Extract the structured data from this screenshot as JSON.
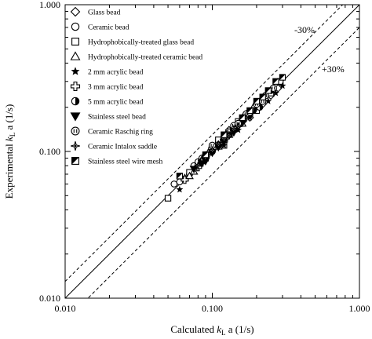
{
  "chart_data": {
    "type": "scatter",
    "xlabel": "Calculated k_L a (1/s)",
    "xlabel_parts": {
      "prefix": "Calculated ",
      "var": "k",
      "sub": "L",
      "suffix": " a (1/s)"
    },
    "ylabel": "Experimental k_L a (1/s)",
    "ylabel_parts": {
      "prefix": "Experimental ",
      "var": "k",
      "sub": "L",
      "suffix": " a (1/s)"
    },
    "xscale": "log",
    "yscale": "log",
    "xlim": [
      0.01,
      1.0
    ],
    "ylim": [
      0.01,
      1.0
    ],
    "xticks": [
      "0.010",
      "0.100",
      "1.000"
    ],
    "yticks": [
      "0.010",
      "0.100",
      "1.000"
    ],
    "grid": false,
    "legend_position": "top-left",
    "reference_lines": [
      {
        "label": "",
        "style": "solid",
        "factor": 1.0
      },
      {
        "label": "-30%",
        "style": "dashed",
        "factor": 1.3
      },
      {
        "label": "+30%",
        "style": "dashed",
        "factor": 0.7
      }
    ],
    "series": [
      {
        "name": "Glass bead",
        "marker": "diamond-open",
        "points": [
          [
            0.1,
            0.105
          ],
          [
            0.12,
            0.12
          ],
          [
            0.15,
            0.15
          ],
          [
            0.18,
            0.17
          ],
          [
            0.2,
            0.2
          ],
          [
            0.22,
            0.21
          ],
          [
            0.25,
            0.24
          ],
          [
            0.28,
            0.27
          ],
          [
            0.17,
            0.18
          ],
          [
            0.13,
            0.14
          ]
        ]
      },
      {
        "name": "Ceramic bead",
        "marker": "circle-open",
        "points": [
          [
            0.055,
            0.06
          ],
          [
            0.06,
            0.062
          ],
          [
            0.065,
            0.065
          ],
          [
            0.07,
            0.07
          ],
          [
            0.075,
            0.08
          ],
          [
            0.08,
            0.082
          ],
          [
            0.09,
            0.095
          ],
          [
            0.1,
            0.1
          ],
          [
            0.11,
            0.115
          ],
          [
            0.085,
            0.09
          ]
        ]
      },
      {
        "name": "Hydrophobically-treated glass bead",
        "marker": "square-open",
        "points": [
          [
            0.05,
            0.048
          ],
          [
            0.07,
            0.072
          ],
          [
            0.09,
            0.09
          ],
          [
            0.12,
            0.11
          ],
          [
            0.15,
            0.16
          ],
          [
            0.2,
            0.19
          ],
          [
            0.25,
            0.25
          ],
          [
            0.29,
            0.3
          ],
          [
            0.11,
            0.12
          ],
          [
            0.18,
            0.18
          ]
        ]
      },
      {
        "name": "Hydrophobically-treated ceramic bead",
        "marker": "triangle-open",
        "points": [
          [
            0.065,
            0.066
          ],
          [
            0.075,
            0.073
          ],
          [
            0.085,
            0.088
          ],
          [
            0.095,
            0.1
          ],
          [
            0.11,
            0.108
          ],
          [
            0.13,
            0.13
          ],
          [
            0.16,
            0.155
          ],
          [
            0.19,
            0.2
          ],
          [
            0.07,
            0.068
          ],
          [
            0.12,
            0.125
          ]
        ]
      },
      {
        "name": "2 mm acrylic bead",
        "marker": "star-filled",
        "points": [
          [
            0.06,
            0.055
          ],
          [
            0.12,
            0.11
          ],
          [
            0.15,
            0.14
          ],
          [
            0.18,
            0.17
          ],
          [
            0.21,
            0.2
          ],
          [
            0.24,
            0.22
          ],
          [
            0.27,
            0.25
          ],
          [
            0.3,
            0.28
          ],
          [
            0.16,
            0.17
          ],
          [
            0.2,
            0.21
          ]
        ]
      },
      {
        "name": "3 mm acrylic bead",
        "marker": "cross-open",
        "points": [
          [
            0.065,
            0.064
          ],
          [
            0.08,
            0.078
          ],
          [
            0.09,
            0.092
          ],
          [
            0.1,
            0.105
          ],
          [
            0.11,
            0.11
          ],
          [
            0.12,
            0.118
          ],
          [
            0.14,
            0.14
          ],
          [
            0.15,
            0.152
          ],
          [
            0.085,
            0.084
          ],
          [
            0.13,
            0.135
          ]
        ]
      },
      {
        "name": "5 mm acrylic bead",
        "marker": "circle-half",
        "points": [
          [
            0.08,
            0.085
          ],
          [
            0.1,
            0.1
          ],
          [
            0.13,
            0.13
          ],
          [
            0.16,
            0.16
          ],
          [
            0.19,
            0.19
          ],
          [
            0.22,
            0.23
          ],
          [
            0.25,
            0.26
          ],
          [
            0.14,
            0.145
          ],
          [
            0.17,
            0.175
          ],
          [
            0.21,
            0.2
          ]
        ]
      },
      {
        "name": "Stainless steel bead",
        "marker": "triangle-down-filled",
        "points": [
          [
            0.075,
            0.076
          ],
          [
            0.09,
            0.086
          ],
          [
            0.1,
            0.098
          ],
          [
            0.12,
            0.116
          ],
          [
            0.14,
            0.135
          ],
          [
            0.16,
            0.157
          ],
          [
            0.18,
            0.176
          ],
          [
            0.11,
            0.107
          ],
          [
            0.13,
            0.128
          ],
          [
            0.085,
            0.083
          ]
        ]
      },
      {
        "name": "Ceramic Raschig ring",
        "marker": "raschig",
        "points": [
          [
            0.1,
            0.11
          ],
          [
            0.12,
            0.125
          ],
          [
            0.14,
            0.15
          ],
          [
            0.17,
            0.18
          ],
          [
            0.2,
            0.21
          ],
          [
            0.23,
            0.24
          ],
          [
            0.26,
            0.27
          ],
          [
            0.15,
            0.155
          ],
          [
            0.18,
            0.185
          ],
          [
            0.22,
            0.22
          ]
        ]
      },
      {
        "name": "Ceramic Intalox saddle",
        "marker": "saddle",
        "points": [
          [
            0.08,
            0.08
          ],
          [
            0.09,
            0.091
          ],
          [
            0.1,
            0.102
          ],
          [
            0.11,
            0.112
          ],
          [
            0.13,
            0.128
          ],
          [
            0.15,
            0.148
          ],
          [
            0.17,
            0.168
          ],
          [
            0.095,
            0.095
          ],
          [
            0.12,
            0.122
          ],
          [
            0.14,
            0.142
          ]
        ]
      },
      {
        "name": "Stainless steel wire mesh",
        "marker": "square-half",
        "points": [
          [
            0.06,
            0.068
          ],
          [
            0.09,
            0.095
          ],
          [
            0.12,
            0.13
          ],
          [
            0.16,
            0.17
          ],
          [
            0.2,
            0.22
          ],
          [
            0.24,
            0.26
          ],
          [
            0.27,
            0.3
          ],
          [
            0.3,
            0.32
          ],
          [
            0.22,
            0.235
          ],
          [
            0.18,
            0.19
          ]
        ]
      }
    ]
  }
}
